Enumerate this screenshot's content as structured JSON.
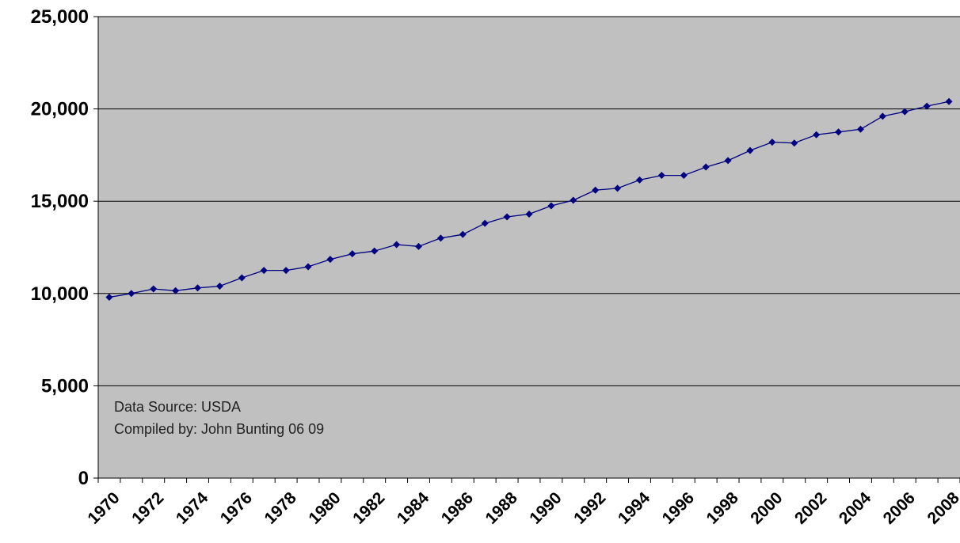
{
  "chart_data": {
    "type": "line",
    "title": "",
    "xlabel": "",
    "ylabel": "",
    "ylim": [
      0,
      25000
    ],
    "y_ticks": [
      0,
      5000,
      10000,
      15000,
      20000,
      25000
    ],
    "y_tick_labels": [
      "0",
      "5,000",
      "10,000",
      "15,000",
      "20,000",
      "25,000"
    ],
    "x_tick_labels": [
      "1970",
      "1972",
      "1974",
      "1976",
      "1978",
      "1980",
      "1982",
      "1984",
      "1986",
      "1988",
      "1990",
      "1992",
      "1994",
      "1996",
      "1998",
      "2000",
      "2002",
      "2004",
      "2006",
      "2008"
    ],
    "grid": "horizontal",
    "legend": "none",
    "colors": {
      "plot_background": "#c0c0c0",
      "line": "#000080",
      "marker": "#000080"
    },
    "series": [
      {
        "x": [
          1970,
          1971,
          1972,
          1973,
          1974,
          1975,
          1976,
          1977,
          1978,
          1979,
          1980,
          1981,
          1982,
          1983,
          1984,
          1985,
          1986,
          1987,
          1988,
          1989,
          1990,
          1991,
          1992,
          1993,
          1994,
          1995,
          1996,
          1997,
          1998,
          1999,
          2000,
          2001,
          2002,
          2003,
          2004,
          2005,
          2006,
          2007,
          2008
        ],
        "values": [
          9800,
          10000,
          10250,
          10150,
          10300,
          10400,
          10850,
          11250,
          11250,
          11450,
          11850,
          12150,
          12300,
          12650,
          12550,
          13000,
          13200,
          13800,
          14150,
          14300,
          14750,
          15050,
          15600,
          15700,
          16150,
          16400,
          16400,
          16850,
          17200,
          17750,
          18200,
          18150,
          18600,
          18750,
          18900,
          19600,
          19850,
          20150,
          20400
        ]
      }
    ],
    "annotation_lines": [
      "Data Source: USDA",
      "Compiled by: John Bunting 06 09"
    ]
  }
}
